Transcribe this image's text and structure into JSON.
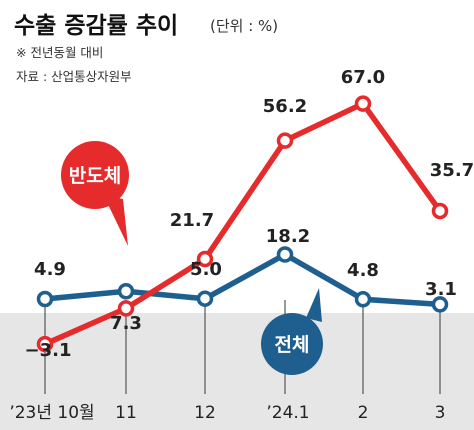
{
  "header": {
    "title": "수출 증감률 추이",
    "unit": "(단위 : %)",
    "note": "※ 전년동월 대비",
    "source": "자료 : 산업통상자원부"
  },
  "chart_data": {
    "type": "line",
    "title": "수출 증감률 추이",
    "unit": "%",
    "categories": [
      "’23년 10월",
      "11",
      "12",
      "’24.1",
      "2",
      "3"
    ],
    "series": [
      {
        "name": "반도체",
        "values": [
          -3.1,
          7.3,
          21.7,
          56.2,
          67.0,
          35.7
        ],
        "labels": [
          "−3.1",
          "7.3",
          "21.7",
          "56.2",
          "67.0",
          "35.7"
        ],
        "color": "#e52b2b"
      },
      {
        "name": "전체",
        "values": [
          4.9,
          7.3,
          5.0,
          18.2,
          4.8,
          3.1
        ],
        "labels": [
          "4.9",
          "",
          "5.0",
          "18.2",
          "4.8",
          "3.1"
        ],
        "color": "#1f5f8f"
      }
    ],
    "zero_band": true,
    "grid": false,
    "legend": "callouts"
  }
}
